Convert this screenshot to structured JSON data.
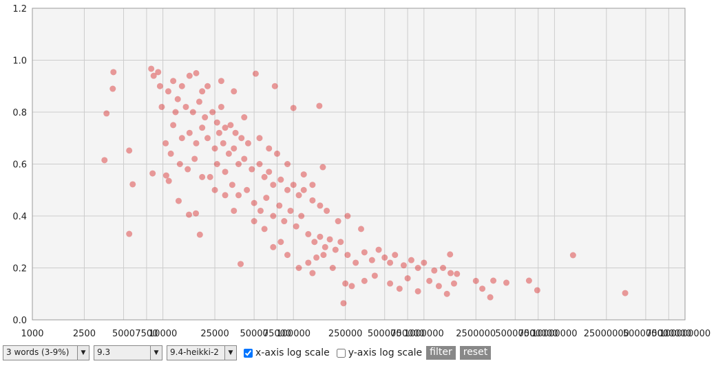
{
  "chart_data": {
    "type": "scatter",
    "color": "#d62728",
    "log_x": true,
    "grid": true,
    "xlim": [
      1000,
      100000000
    ],
    "ylim": [
      0,
      1.2
    ],
    "xticks": [
      1000,
      2500,
      5000,
      7500,
      10000,
      25000,
      50000,
      75000,
      100000,
      250000,
      500000,
      750000,
      1000000,
      2500000,
      5000000,
      7500000,
      10000000,
      25000000,
      50000000,
      75000000,
      100000000
    ],
    "yticks": [
      {
        "value": 0,
        "label": "0.0"
      },
      {
        "value": 0.2,
        "label": "0.2"
      },
      {
        "value": 0.4,
        "label": "0.4"
      },
      {
        "value": 0.6,
        "label": "0.6"
      },
      {
        "value": 0.8,
        "label": "0.8"
      },
      {
        "value": 1,
        "label": "1.0"
      },
      {
        "value": 1.2,
        "label": "1.2"
      }
    ],
    "x": [
      3570,
      3700,
      4180,
      4130,
      5520,
      5520,
      5870,
      8140,
      9200,
      8340,
      10600,
      11100,
      13200,
      15850,
      17900,
      19200,
      39400,
      51400,
      72100,
      100000,
      158000,
      168000,
      242000,
      13870000,
      34800000,
      7380000,
      6380000,
      4280000,
      3220000,
      3400000,
      1585000,
      1790000,
      12000,
      14000,
      16000,
      18000,
      11000,
      9500,
      8500,
      20000,
      22000,
      13000,
      15000,
      17000,
      19000,
      21000,
      24000,
      26000,
      28000,
      30000,
      33000,
      36000,
      40000,
      45000,
      12000,
      14000,
      16000,
      18000,
      20000,
      22000,
      25000,
      27000,
      29000,
      32000,
      35000,
      38000,
      42000,
      48000,
      55000,
      60000,
      65000,
      70000,
      80000,
      90000,
      100000,
      110000,
      120000,
      140000,
      160000,
      10500,
      11500,
      13500,
      15500,
      17500,
      23000,
      26000,
      30000,
      34000,
      38000,
      44000,
      50000,
      56000,
      62000,
      70000,
      78000,
      85000,
      95000,
      105000,
      115000,
      130000,
      145000,
      160000,
      175000,
      190000,
      210000,
      230000,
      130000,
      150000,
      170000,
      200000,
      260000,
      300000,
      350000,
      400000,
      450000,
      500000,
      550000,
      600000,
      700000,
      800000,
      900000,
      1000000,
      1200000,
      1400000,
      1600000,
      250000,
      280000,
      350000,
      420000,
      550000,
      650000,
      750000,
      900000,
      1100000,
      1300000,
      1500000,
      1700000,
      2500000,
      2800000,
      60000,
      70000,
      80000,
      90000,
      110000,
      140000,
      50000,
      35000,
      30000,
      25000,
      20000,
      42000,
      55000,
      75000,
      65000,
      90000,
      120000,
      140000,
      180000,
      220000,
      260000,
      330000,
      12500,
      9800,
      28000,
      35000
    ],
    "values": [
      0.615,
      0.795,
      0.954,
      0.89,
      0.652,
      0.331,
      0.522,
      0.967,
      0.954,
      0.564,
      0.556,
      0.535,
      0.458,
      0.405,
      0.41,
      0.328,
      0.215,
      0.948,
      0.9,
      0.816,
      0.824,
      0.588,
      0.064,
      0.249,
      0.103,
      0.114,
      0.151,
      0.143,
      0.087,
      0.151,
      0.252,
      0.177,
      0.92,
      0.9,
      0.94,
      0.95,
      0.88,
      0.9,
      0.94,
      0.88,
      0.9,
      0.85,
      0.82,
      0.8,
      0.84,
      0.78,
      0.8,
      0.76,
      0.82,
      0.74,
      0.75,
      0.72,
      0.7,
      0.68,
      0.75,
      0.7,
      0.72,
      0.68,
      0.74,
      0.7,
      0.66,
      0.72,
      0.68,
      0.64,
      0.66,
      0.6,
      0.62,
      0.58,
      0.6,
      0.55,
      0.57,
      0.52,
      0.54,
      0.5,
      0.52,
      0.48,
      0.5,
      0.46,
      0.44,
      0.68,
      0.64,
      0.6,
      0.58,
      0.62,
      0.55,
      0.6,
      0.57,
      0.52,
      0.48,
      0.5,
      0.45,
      0.42,
      0.47,
      0.4,
      0.44,
      0.38,
      0.42,
      0.36,
      0.4,
      0.33,
      0.3,
      0.32,
      0.28,
      0.31,
      0.27,
      0.3,
      0.22,
      0.24,
      0.25,
      0.2,
      0.25,
      0.22,
      0.26,
      0.23,
      0.27,
      0.24,
      0.22,
      0.25,
      0.21,
      0.23,
      0.2,
      0.22,
      0.19,
      0.2,
      0.18,
      0.14,
      0.13,
      0.15,
      0.17,
      0.14,
      0.12,
      0.16,
      0.11,
      0.15,
      0.13,
      0.1,
      0.14,
      0.15,
      0.12,
      0.35,
      0.28,
      0.3,
      0.25,
      0.2,
      0.18,
      0.38,
      0.42,
      0.48,
      0.5,
      0.55,
      0.78,
      0.7,
      0.64,
      0.66,
      0.6,
      0.56,
      0.52,
      0.42,
      0.38,
      0.4,
      0.35,
      0.8,
      0.82,
      0.92,
      0.88
    ]
  },
  "controls": {
    "selects": [
      "3 words (3-9%)",
      "9.3",
      "9.4-heikki-2"
    ],
    "arrow": "▼",
    "x_log_label": "x-axis log scale",
    "x_log_checked": true,
    "y_log_label": "y-axis log scale",
    "y_log_checked": false,
    "buttons": [
      "filter",
      "reset"
    ]
  }
}
